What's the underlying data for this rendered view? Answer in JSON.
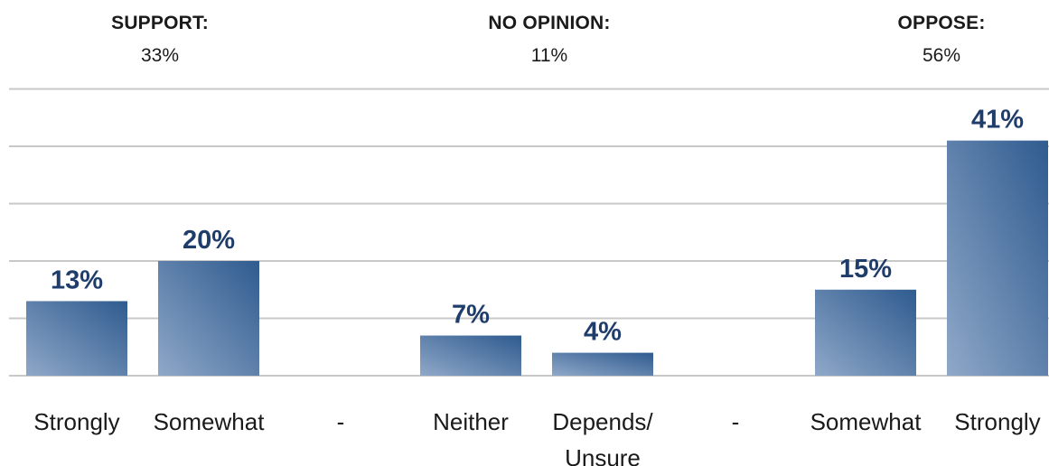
{
  "groups": [
    {
      "title": "SUPPORT:",
      "percent": "33%"
    },
    {
      "title": "NO OPINION:",
      "percent": "11%"
    },
    {
      "title": "OPPOSE:",
      "percent": "56%"
    }
  ],
  "colors": {
    "bar_light": "#8fa8c8",
    "bar_dark": "#2f5b8f",
    "value_label": "#1f3d6b",
    "grid": "#c8c8c8"
  },
  "chart_data": {
    "type": "bar",
    "categories": [
      "Strongly",
      "Somewhat",
      "-",
      "Neither",
      "Depends/\nUnsure",
      "-",
      "Somewhat",
      "Strongly"
    ],
    "values": [
      13,
      20,
      null,
      7,
      4,
      null,
      15,
      41
    ],
    "value_labels": [
      "13%",
      "20%",
      "",
      "7%",
      "4%",
      "",
      "15%",
      "41%"
    ],
    "ylim": [
      0,
      50
    ],
    "grid": true
  }
}
